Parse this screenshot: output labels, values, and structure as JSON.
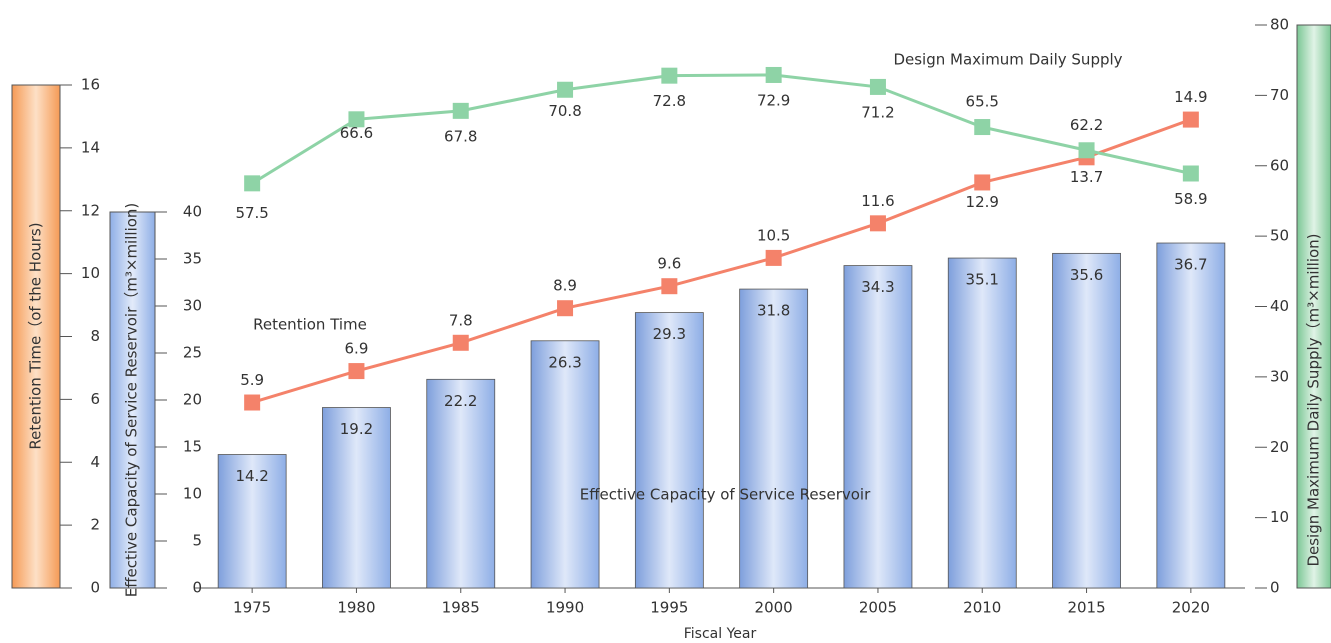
{
  "chart_data": {
    "type": "combo",
    "categories": [
      "1975",
      "1980",
      "1985",
      "1990",
      "1995",
      "2000",
      "2005",
      "2010",
      "2015",
      "2020"
    ],
    "xlabel": "Fiscal Year",
    "ylabel": "Effective Capacity of Service Reservoir（m³×million)",
    "ylim": [
      0,
      40
    ],
    "yticks": [
      0,
      5,
      10,
      15,
      20,
      25,
      30,
      35,
      40
    ],
    "y2label": "Design Maximum Daily Supply（m³×million)",
    "y2lim": [
      0,
      80
    ],
    "y2ticks": [
      0,
      10,
      20,
      30,
      40,
      50,
      60,
      70,
      80
    ],
    "y3label": "Retention Time（of the Hours)",
    "y3lim": [
      0,
      16
    ],
    "y3ticks": [
      0,
      2,
      4,
      6,
      8,
      10,
      12,
      14,
      16
    ],
    "series": [
      {
        "name": "Effective Capacity of Service Reservoir",
        "type": "bar",
        "axis": "y",
        "color": "#a9c0ea",
        "values": [
          14.2,
          19.2,
          22.2,
          26.3,
          29.3,
          31.8,
          34.3,
          35.1,
          35.6,
          36.7
        ]
      },
      {
        "name": "Retention Time",
        "type": "line",
        "axis": "y3",
        "color": "#f4826a",
        "values": [
          5.9,
          6.9,
          7.8,
          8.9,
          9.6,
          10.5,
          11.6,
          12.9,
          13.7,
          14.9
        ]
      },
      {
        "name": "Design Maximum Daily Supply",
        "type": "line",
        "axis": "y2",
        "color": "#8ed3a6",
        "values": [
          57.5,
          66.6,
          67.8,
          70.8,
          72.8,
          72.9,
          71.2,
          65.5,
          62.2,
          58.9
        ]
      }
    ]
  }
}
